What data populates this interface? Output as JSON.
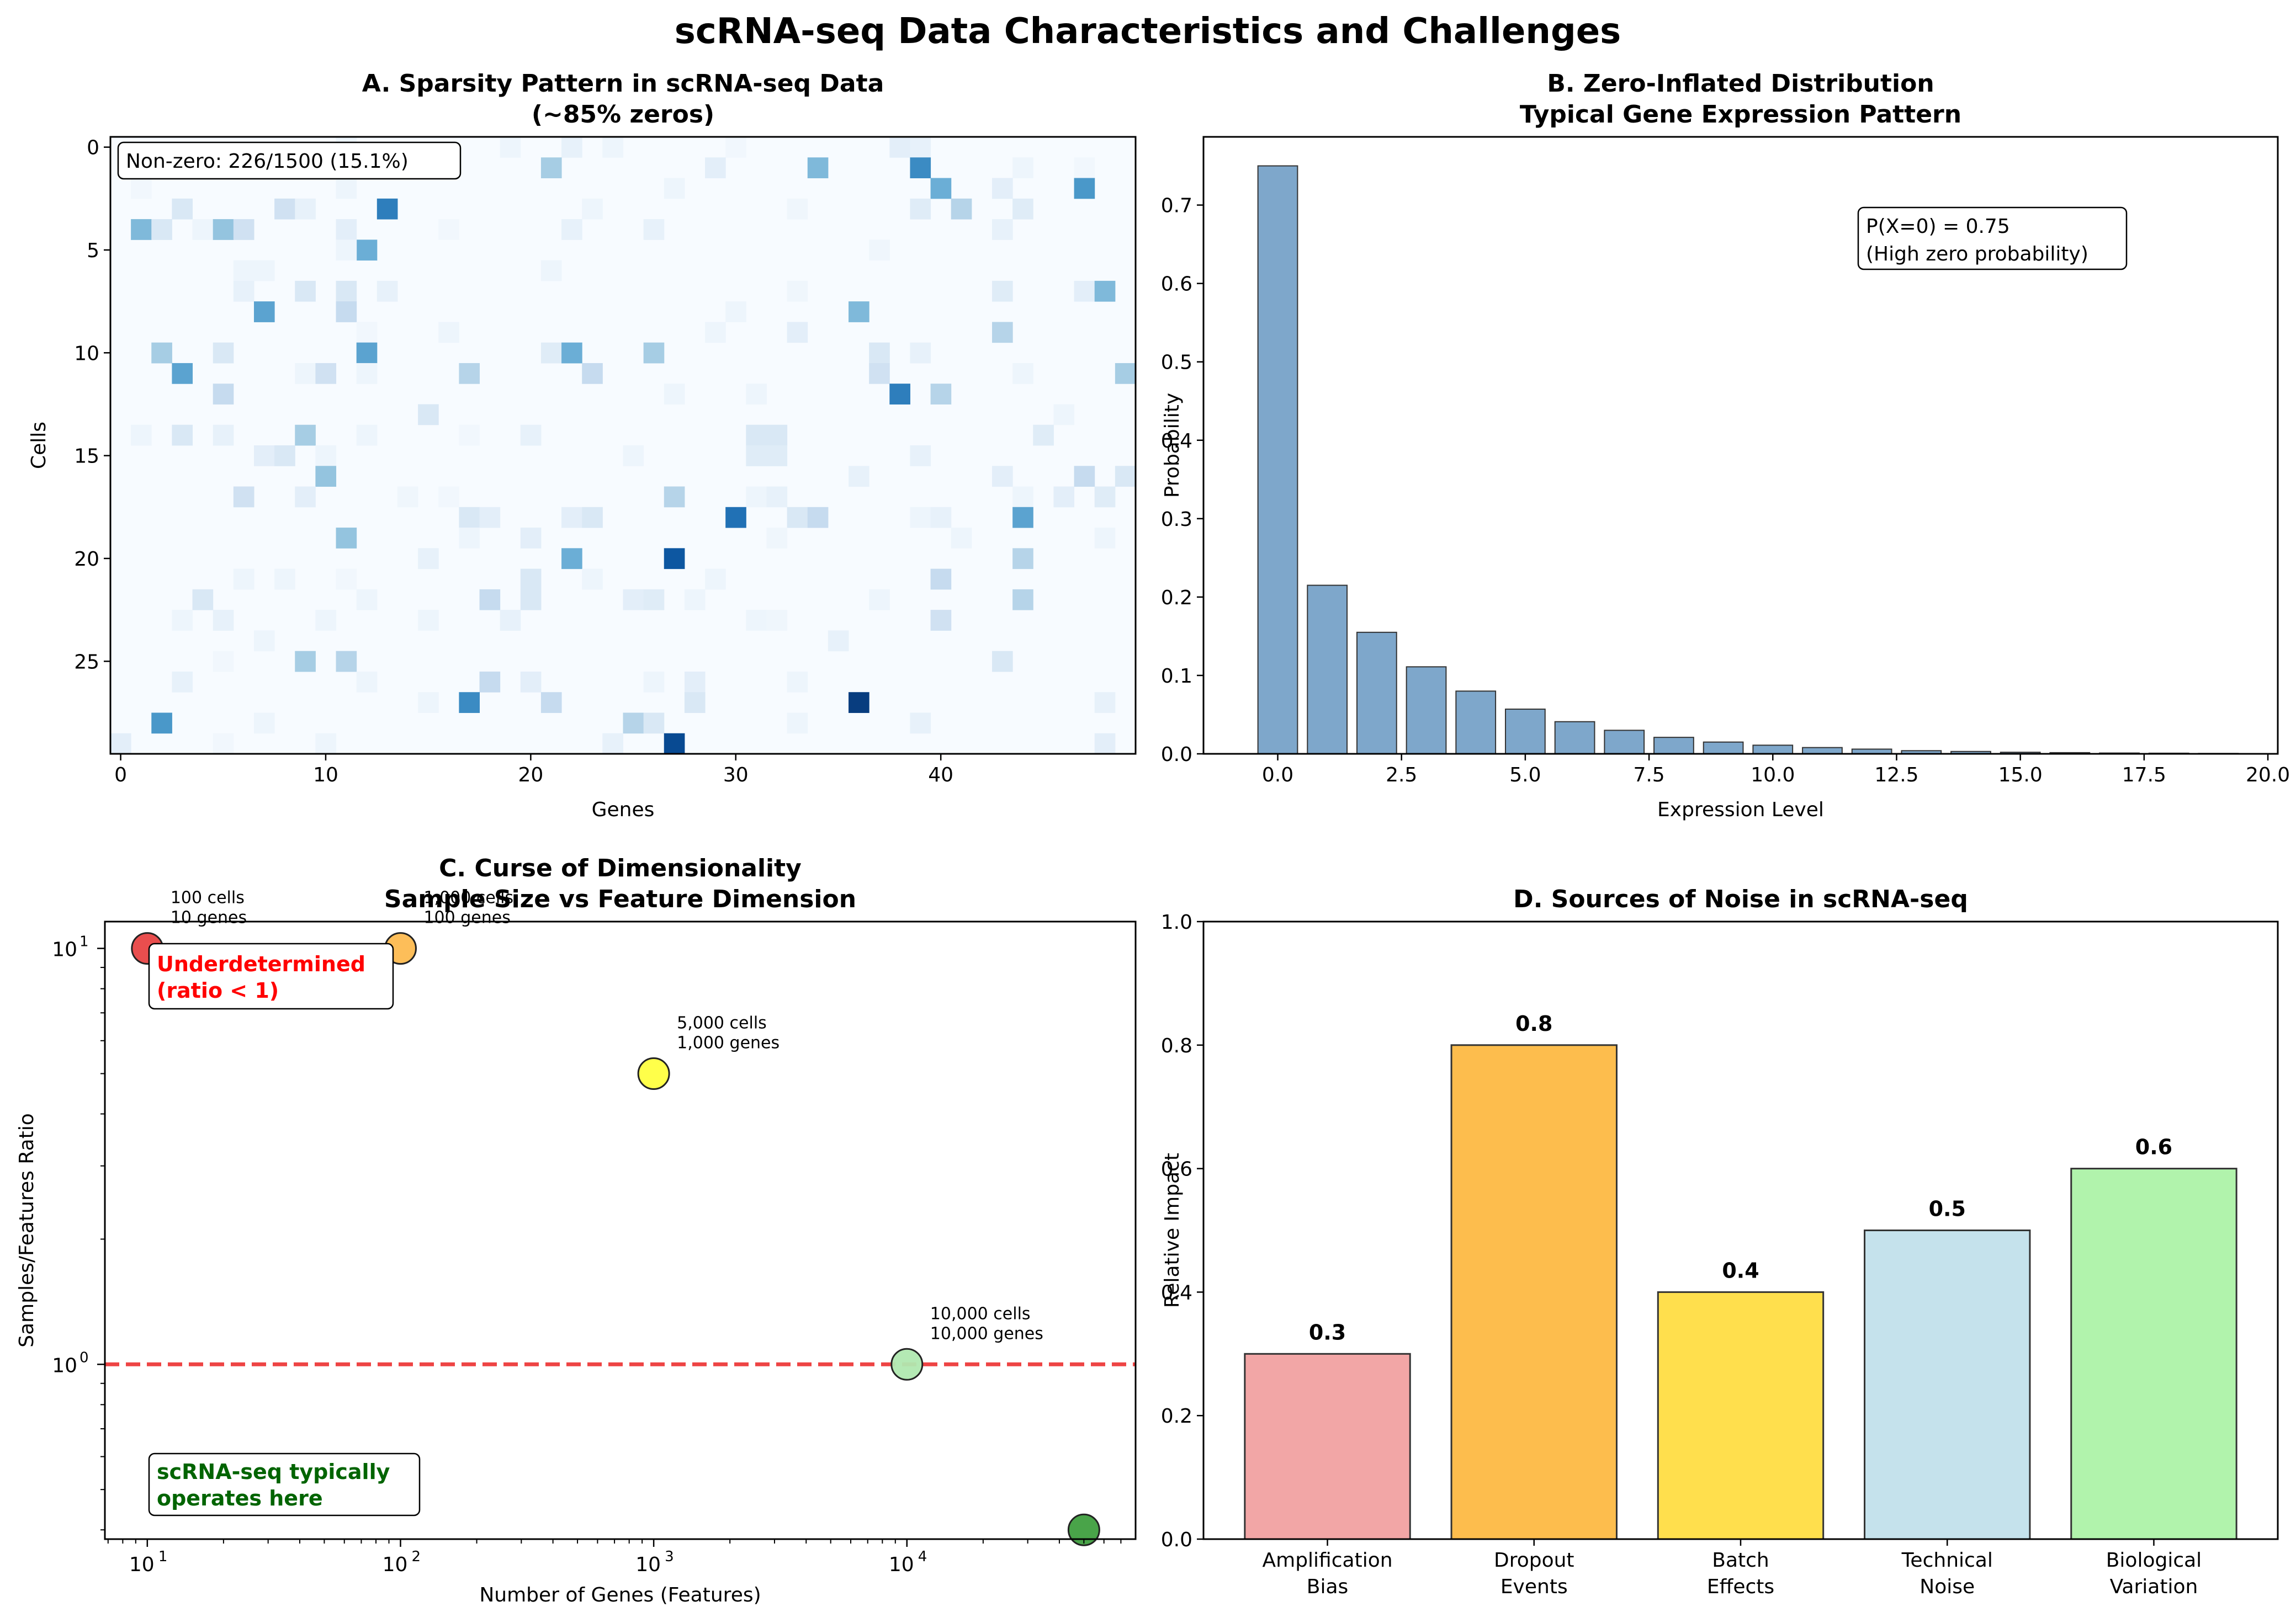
{
  "figure_title": "scRNA-seq Data Characteristics and Challenges",
  "chart_data": [
    {
      "panel": "A",
      "type": "heatmap",
      "title": "A. Sparsity Pattern in scRNA-seq Data",
      "subtitle": "(~85% zeros)",
      "xlabel": "Genes",
      "ylabel": "Cells",
      "n_rows": 30,
      "n_cols": 50,
      "xticks": [
        0,
        10,
        20,
        30,
        40
      ],
      "yticks": [
        0,
        5,
        10,
        15,
        20,
        25
      ],
      "colormap": [
        "#f7fbff",
        "#deebf7",
        "#c6dbef",
        "#9ecae1",
        "#6baed6",
        "#4292c6",
        "#2171b5",
        "#08519c",
        "#08306b"
      ],
      "annotation": "Non-zero: 226/1500 (15.1%)",
      "cells": [
        [
          0,
          11,
          0.05
        ],
        [
          0,
          19,
          0.05
        ],
        [
          0,
          22,
          0.08
        ],
        [
          0,
          24,
          0.05
        ],
        [
          0,
          30,
          0.03
        ],
        [
          0,
          38,
          0.1
        ],
        [
          0,
          39,
          0.08
        ],
        [
          1,
          12,
          0.3
        ],
        [
          1,
          21,
          0.35
        ],
        [
          1,
          29,
          0.1
        ],
        [
          1,
          34,
          0.45
        ],
        [
          1,
          39,
          0.65
        ],
        [
          1,
          44,
          0.05
        ],
        [
          1,
          47,
          0.03
        ],
        [
          2,
          1,
          0.03
        ],
        [
          2,
          11,
          0.05
        ],
        [
          2,
          27,
          0.05
        ],
        [
          2,
          40,
          0.5
        ],
        [
          2,
          43,
          0.1
        ],
        [
          2,
          47,
          0.6
        ],
        [
          3,
          3,
          0.15
        ],
        [
          3,
          8,
          0.2
        ],
        [
          3,
          9,
          0.08
        ],
        [
          3,
          13,
          0.7
        ],
        [
          3,
          23,
          0.05
        ],
        [
          3,
          33,
          0.04
        ],
        [
          3,
          39,
          0.12
        ],
        [
          3,
          41,
          0.3
        ],
        [
          3,
          44,
          0.12
        ],
        [
          4,
          1,
          0.45
        ],
        [
          4,
          2,
          0.15
        ],
        [
          4,
          4,
          0.05
        ],
        [
          4,
          5,
          0.4
        ],
        [
          4,
          6,
          0.2
        ],
        [
          4,
          11,
          0.1
        ],
        [
          4,
          16,
          0.03
        ],
        [
          4,
          22,
          0.08
        ],
        [
          4,
          26,
          0.08
        ],
        [
          4,
          43,
          0.08
        ],
        [
          5,
          12,
          0.5
        ],
        [
          5,
          37,
          0.04
        ],
        [
          5,
          11,
          0.05
        ],
        [
          6,
          6,
          0.05
        ],
        [
          6,
          7,
          0.05
        ],
        [
          6,
          21,
          0.05
        ],
        [
          7,
          6,
          0.08
        ],
        [
          7,
          9,
          0.15
        ],
        [
          7,
          11,
          0.15
        ],
        [
          7,
          13,
          0.08
        ],
        [
          7,
          33,
          0.04
        ],
        [
          7,
          43,
          0.12
        ],
        [
          7,
          47,
          0.1
        ],
        [
          7,
          48,
          0.45
        ],
        [
          8,
          7,
          0.55
        ],
        [
          8,
          11,
          0.25
        ],
        [
          8,
          30,
          0.05
        ],
        [
          8,
          36,
          0.45
        ],
        [
          9,
          12,
          0.03
        ],
        [
          9,
          16,
          0.05
        ],
        [
          9,
          29,
          0.05
        ],
        [
          9,
          33,
          0.1
        ],
        [
          9,
          43,
          0.3
        ],
        [
          10,
          2,
          0.35
        ],
        [
          10,
          5,
          0.15
        ],
        [
          10,
          12,
          0.55
        ],
        [
          10,
          21,
          0.12
        ],
        [
          10,
          22,
          0.5
        ],
        [
          10,
          26,
          0.35
        ],
        [
          10,
          37,
          0.15
        ],
        [
          10,
          39,
          0.08
        ],
        [
          11,
          3,
          0.55
        ],
        [
          11,
          9,
          0.05
        ],
        [
          11,
          10,
          0.2
        ],
        [
          11,
          12,
          0.05
        ],
        [
          11,
          17,
          0.3
        ],
        [
          11,
          23,
          0.25
        ],
        [
          11,
          37,
          0.2
        ],
        [
          11,
          44,
          0.05
        ],
        [
          11,
          49,
          0.35
        ],
        [
          12,
          5,
          0.25
        ],
        [
          12,
          27,
          0.05
        ],
        [
          12,
          31,
          0.05
        ],
        [
          12,
          38,
          0.7
        ],
        [
          12,
          40,
          0.3
        ],
        [
          13,
          15,
          0.15
        ],
        [
          13,
          46,
          0.05
        ],
        [
          14,
          1,
          0.05
        ],
        [
          14,
          3,
          0.15
        ],
        [
          14,
          5,
          0.08
        ],
        [
          14,
          9,
          0.35
        ],
        [
          14,
          12,
          0.05
        ],
        [
          14,
          17,
          0.03
        ],
        [
          14,
          20,
          0.08
        ],
        [
          14,
          31,
          0.15
        ],
        [
          14,
          32,
          0.15
        ],
        [
          14,
          45,
          0.12
        ],
        [
          15,
          7,
          0.1
        ],
        [
          15,
          8,
          0.15
        ],
        [
          15,
          10,
          0.05
        ],
        [
          15,
          25,
          0.05
        ],
        [
          15,
          31,
          0.12
        ],
        [
          15,
          32,
          0.12
        ],
        [
          15,
          39,
          0.08
        ],
        [
          16,
          10,
          0.4
        ],
        [
          16,
          36,
          0.08
        ],
        [
          16,
          43,
          0.1
        ],
        [
          16,
          47,
          0.25
        ],
        [
          16,
          49,
          0.15
        ],
        [
          17,
          6,
          0.2
        ],
        [
          17,
          9,
          0.1
        ],
        [
          17,
          14,
          0.04
        ],
        [
          17,
          16,
          0.03
        ],
        [
          17,
          27,
          0.3
        ],
        [
          17,
          31,
          0.05
        ],
        [
          17,
          32,
          0.08
        ],
        [
          17,
          44,
          0.05
        ],
        [
          17,
          46,
          0.1
        ],
        [
          17,
          48,
          0.12
        ],
        [
          18,
          17,
          0.15
        ],
        [
          18,
          18,
          0.1
        ],
        [
          18,
          22,
          0.1
        ],
        [
          18,
          23,
          0.15
        ],
        [
          18,
          30,
          0.75
        ],
        [
          18,
          33,
          0.15
        ],
        [
          18,
          34,
          0.25
        ],
        [
          18,
          39,
          0.05
        ],
        [
          18,
          40,
          0.08
        ],
        [
          18,
          44,
          0.55
        ],
        [
          19,
          11,
          0.4
        ],
        [
          19,
          17,
          0.05
        ],
        [
          19,
          20,
          0.1
        ],
        [
          19,
          32,
          0.04
        ],
        [
          19,
          41,
          0.05
        ],
        [
          19,
          48,
          0.05
        ],
        [
          20,
          15,
          0.08
        ],
        [
          20,
          22,
          0.5
        ],
        [
          20,
          27,
          0.85
        ],
        [
          20,
          44,
          0.3
        ],
        [
          21,
          6,
          0.05
        ],
        [
          21,
          8,
          0.05
        ],
        [
          21,
          11,
          0.03
        ],
        [
          21,
          20,
          0.15
        ],
        [
          21,
          23,
          0.05
        ],
        [
          21,
          29,
          0.05
        ],
        [
          21,
          40,
          0.25
        ],
        [
          22,
          4,
          0.15
        ],
        [
          22,
          12,
          0.05
        ],
        [
          22,
          18,
          0.25
        ],
        [
          22,
          20,
          0.15
        ],
        [
          22,
          25,
          0.1
        ],
        [
          22,
          26,
          0.12
        ],
        [
          22,
          28,
          0.05
        ],
        [
          22,
          37,
          0.05
        ],
        [
          22,
          44,
          0.3
        ],
        [
          23,
          3,
          0.05
        ],
        [
          23,
          5,
          0.08
        ],
        [
          23,
          10,
          0.05
        ],
        [
          23,
          15,
          0.05
        ],
        [
          23,
          19,
          0.08
        ],
        [
          23,
          31,
          0.05
        ],
        [
          23,
          32,
          0.04
        ],
        [
          23,
          40,
          0.2
        ],
        [
          24,
          7,
          0.05
        ],
        [
          24,
          35,
          0.08
        ],
        [
          25,
          5,
          0.03
        ],
        [
          25,
          9,
          0.35
        ],
        [
          25,
          11,
          0.3
        ],
        [
          25,
          43,
          0.15
        ],
        [
          26,
          3,
          0.08
        ],
        [
          26,
          12,
          0.05
        ],
        [
          26,
          18,
          0.25
        ],
        [
          26,
          20,
          0.1
        ],
        [
          26,
          26,
          0.05
        ],
        [
          26,
          28,
          0.1
        ],
        [
          26,
          33,
          0.05
        ],
        [
          27,
          15,
          0.05
        ],
        [
          27,
          17,
          0.65
        ],
        [
          27,
          21,
          0.25
        ],
        [
          27,
          28,
          0.15
        ],
        [
          27,
          36,
          0.95
        ],
        [
          27,
          48,
          0.08
        ],
        [
          28,
          2,
          0.6
        ],
        [
          28,
          7,
          0.05
        ],
        [
          28,
          25,
          0.3
        ],
        [
          28,
          26,
          0.15
        ],
        [
          28,
          33,
          0.05
        ],
        [
          28,
          39,
          0.08
        ],
        [
          29,
          5,
          0.03
        ],
        [
          29,
          10,
          0.05
        ],
        [
          29,
          24,
          0.08
        ],
        [
          29,
          27,
          0.9
        ],
        [
          29,
          48,
          0.1
        ],
        [
          29,
          0,
          0.1
        ]
      ]
    },
    {
      "panel": "B",
      "type": "bar",
      "title": "B. Zero-Inflated Distribution",
      "subtitle": "Typical Gene Expression Pattern",
      "xlabel": "Expression Level",
      "ylabel": "Probability",
      "x": [
        0,
        1,
        2,
        3,
        4,
        5,
        6,
        7,
        8,
        9,
        10,
        11,
        12,
        13,
        14,
        15,
        16,
        17,
        18,
        19
      ],
      "values": [
        0.75,
        0.215,
        0.155,
        0.111,
        0.08,
        0.057,
        0.041,
        0.03,
        0.021,
        0.015,
        0.011,
        0.008,
        0.006,
        0.004,
        0.003,
        0.002,
        0.0015,
        0.001,
        0.0008,
        0.0005
      ],
      "xlim": [
        -1.5,
        20.2
      ],
      "ylim": [
        0,
        0.787
      ],
      "xticks": [
        0,
        2.5,
        5,
        7.5,
        10,
        12.5,
        15,
        17.5,
        20
      ],
      "xtick_labels": [
        "0.0",
        "2.5",
        "5.0",
        "7.5",
        "10.0",
        "12.5",
        "15.0",
        "17.5",
        "20.0"
      ],
      "yticks": [
        0,
        0.1,
        0.2,
        0.3,
        0.4,
        0.5,
        0.6,
        0.7
      ],
      "ytick_labels": [
        "0.0",
        "0.1",
        "0.2",
        "0.3",
        "0.4",
        "0.5",
        "0.6",
        "0.7"
      ],
      "bar_color": "#7ea7cb",
      "annotation_lines": [
        "P(X=0) = 0.75",
        "(High zero probability)"
      ]
    },
    {
      "panel": "C",
      "type": "scatter",
      "title": "C. Curse of Dimensionality",
      "subtitle": "Sample Size vs Feature Dimension",
      "xlabel": "Number of Genes (Features)",
      "ylabel": "Samples/Features Ratio",
      "xscale": "log",
      "yscale": "log",
      "xlim": [
        6.8,
        80000
      ],
      "ylim": [
        0.38,
        11.6
      ],
      "xticks": [
        10,
        100,
        1000,
        10000
      ],
      "xtick_exponents": [
        "1",
        "2",
        "3",
        "4"
      ],
      "yticks": [
        1,
        10
      ],
      "ytick_exponents": [
        "0",
        "1"
      ],
      "points": [
        {
          "x": 10,
          "y": 10,
          "color": "#e84545",
          "label_lines": [
            "100 cells",
            "10 genes"
          ]
        },
        {
          "x": 100,
          "y": 10,
          "color": "#fdba50",
          "label_lines": [
            "1,000 cells",
            "100 genes"
          ]
        },
        {
          "x": 1000,
          "y": 5,
          "color": "#ffff40",
          "label_lines": [
            "5,000 cells",
            "1,000 genes"
          ]
        },
        {
          "x": 10000,
          "y": 1,
          "color": "#b0e8b0",
          "label_lines": [
            "10,000 cells",
            "10,000 genes"
          ]
        },
        {
          "x": 50000,
          "y": 0.4,
          "color": "#3f9f3f",
          "label_lines": []
        }
      ],
      "reference_line": {
        "y": 1,
        "color": "#ee4444"
      },
      "note_red": [
        "Underdetermined",
        "(ratio < 1)"
      ],
      "note_red_color": "#ff0000",
      "note_green": [
        "scRNA-seq typically",
        "operates here"
      ],
      "note_green_color": "#006400"
    },
    {
      "panel": "D",
      "type": "bar",
      "title": "D. Sources of Noise in scRNA-seq",
      "xlabel": "",
      "ylabel": "Relative Impact",
      "categories": [
        [
          "Amplification",
          "Bias"
        ],
        [
          "Dropout",
          "Events"
        ],
        [
          "Batch",
          "Effects"
        ],
        [
          "Technical",
          "Noise"
        ],
        [
          "Biological",
          "Variation"
        ]
      ],
      "values": [
        0.3,
        0.8,
        0.4,
        0.5,
        0.6
      ],
      "value_labels": [
        "0.3",
        "0.8",
        "0.4",
        "0.5",
        "0.6"
      ],
      "colors": [
        "#f2a6a6",
        "#fdbd4d",
        "#ffdf4d",
        "#c5e2ec",
        "#b1f3ac"
      ],
      "ylim": [
        0,
        1.0
      ],
      "yticks": [
        0,
        0.2,
        0.4,
        0.6,
        0.8,
        1.0
      ],
      "ytick_labels": [
        "0.0",
        "0.2",
        "0.4",
        "0.6",
        "0.8",
        "1.0"
      ]
    }
  ]
}
